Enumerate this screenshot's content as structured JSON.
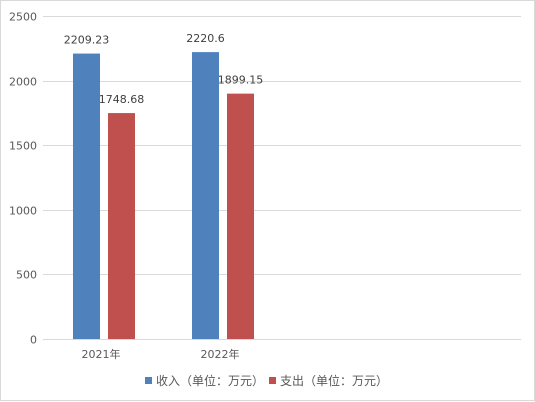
{
  "chart_data": {
    "type": "bar",
    "categories": [
      "2021年",
      "2022年"
    ],
    "series": [
      {
        "name": "收入（单位：万元）",
        "color": "#4f81bd",
        "values": [
          2209.23,
          2220.6
        ],
        "labels": [
          "2209.23",
          "2220.6"
        ]
      },
      {
        "name": "支出（单位：万元）",
        "color": "#c0504d",
        "values": [
          1748.68,
          1899.15
        ],
        "labels": [
          "1748.68",
          "1899.15"
        ]
      }
    ],
    "ylim": [
      0,
      2500
    ],
    "yticks": [
      0,
      500,
      1000,
      1500,
      2000,
      2500
    ],
    "grid": true,
    "legend_position": "bottom"
  }
}
